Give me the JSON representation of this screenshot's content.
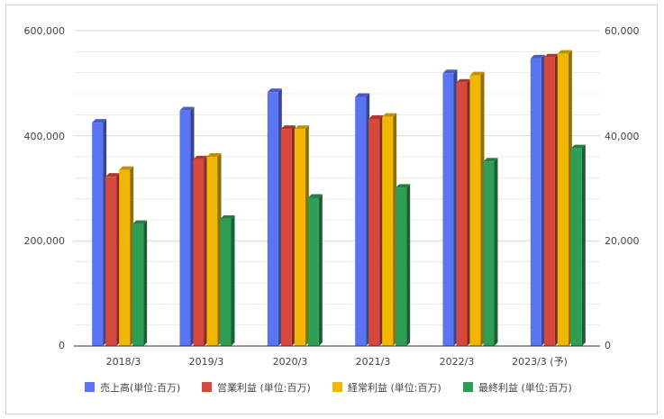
{
  "chart_data": {
    "type": "bar",
    "style": "3d-clustered",
    "categories": [
      "2018/3",
      "2019/3",
      "2020/3",
      "2021/3",
      "2022/3",
      "2023/3 (予)"
    ],
    "series": [
      {
        "name": "売上高(単位:百万)",
        "axis": "left",
        "color": "#5b74f4",
        "values": [
          425000,
          448000,
          483000,
          474000,
          519000,
          547000
        ]
      },
      {
        "name": "営業利益 (単位:百万)",
        "axis": "right",
        "color": "#d6473e",
        "values": [
          32200,
          35500,
          41300,
          43200,
          50100,
          54900
        ]
      },
      {
        "name": "経常利益 (単位:百万)",
        "axis": "right",
        "color": "#f0b705",
        "values": [
          33500,
          36000,
          41300,
          43600,
          51500,
          55600
        ]
      },
      {
        "name": "最終利益 (単位:百万)",
        "axis": "right",
        "color": "#2e9e56",
        "values": [
          23200,
          24200,
          28200,
          30100,
          35100,
          37600
        ]
      }
    ],
    "y_left": {
      "min": 0,
      "max": 600000,
      "ticks": [
        "0",
        "200,000",
        "400,000",
        "600,000"
      ]
    },
    "y_right": {
      "min": 0,
      "max": 60000,
      "ticks": [
        "0",
        "20,000",
        "40,000",
        "60,000"
      ]
    },
    "grid": true,
    "legend_position": "bottom"
  }
}
